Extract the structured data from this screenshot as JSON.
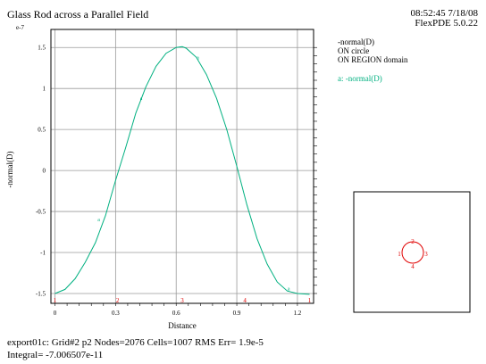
{
  "header": {
    "title": "Glass Rod across a Parallel Field",
    "timestamp": "08:52:45 7/18/08",
    "version": "FlexPDE 5.0.22"
  },
  "legend": {
    "lines": [
      "-normal(D)",
      "ON circle",
      "ON REGION domain"
    ],
    "series_label": "a: -normal(D)"
  },
  "footer": {
    "line1": "export01c:  Grid#2  p2  Nodes=2076 Cells=1007 RMS Err= 1.9e-5",
    "line2": "Integral= -7.006507e-11"
  },
  "colors": {
    "curve": "#00b080",
    "grid": "#9a9a9a",
    "markers": "#e00000"
  },
  "chart_data": {
    "type": "line",
    "xlabel": "Distance",
    "ylabel": "-normal(D)",
    "exponent_label": "e-7",
    "xlim": [
      -0.02,
      1.28
    ],
    "ylim": [
      -1.62,
      1.72
    ],
    "xticks": [
      0,
      0.3,
      0.6,
      0.9,
      1.2
    ],
    "xtick_labels": [
      "0",
      "0.3",
      "0.6",
      "0.9",
      "1.2"
    ],
    "yticks": [
      1.5,
      1,
      0.5,
      0,
      -0.5,
      -1,
      -1.5
    ],
    "ytick_labels": [
      "1.5",
      "1",
      "0.5",
      "0",
      "-0.5",
      "-1",
      "-1.5"
    ],
    "series": [
      {
        "name": "a",
        "x": [
          0,
          0.05,
          0.1,
          0.15,
          0.2,
          0.25,
          0.3,
          0.35,
          0.4,
          0.45,
          0.5,
          0.55,
          0.6,
          0.63,
          0.65,
          0.7,
          0.75,
          0.8,
          0.85,
          0.9,
          0.95,
          1.0,
          1.05,
          1.1,
          1.15,
          1.2,
          1.26
        ],
        "y": [
          -1.5,
          -1.45,
          -1.32,
          -1.12,
          -0.88,
          -0.55,
          -0.12,
          0.28,
          0.7,
          1.02,
          1.27,
          1.43,
          1.5,
          1.51,
          1.49,
          1.38,
          1.17,
          0.88,
          0.5,
          0.05,
          -0.42,
          -0.83,
          -1.14,
          -1.36,
          -1.47,
          -1.5,
          -1.51
        ]
      }
    ],
    "series_markers": [
      {
        "label": "a",
        "x": 0.22,
        "y": -0.6
      },
      {
        "label": "a",
        "x": 0.43,
        "y": 0.88
      },
      {
        "label": "a",
        "x": 0.71,
        "y": 1.38
      },
      {
        "label": "a",
        "x": 1.16,
        "y": -1.44
      }
    ],
    "axis_markers": [
      {
        "label": "1",
        "x": 0
      },
      {
        "label": "2",
        "x": 0.31
      },
      {
        "label": "3",
        "x": 0.63
      },
      {
        "label": "4",
        "x": 0.94
      },
      {
        "label": "1",
        "x": 1.26
      }
    ]
  },
  "inset": {
    "markers": [
      "1",
      "2",
      "3",
      "4"
    ]
  }
}
